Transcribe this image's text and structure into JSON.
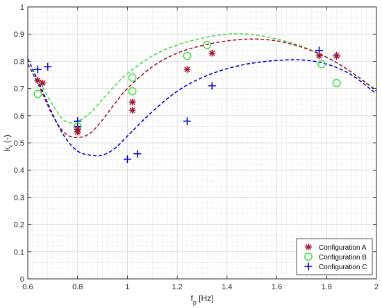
{
  "chart_data": {
    "type": "scatter",
    "xlabel": "f",
    "xlabel_sub": "p",
    "xlabel_unit": " [Hz]",
    "ylabel": "k",
    "ylabel_sub": "t",
    "ylabel_unit": " (-)",
    "xlim": [
      0.6,
      2.0
    ],
    "ylim": [
      0,
      1
    ],
    "x_ticks": [
      0.6,
      0.8,
      1.0,
      1.2,
      1.4,
      1.6,
      1.8,
      2.0
    ],
    "x_tick_labels": [
      "0.6",
      "0.8",
      "1",
      "1.2",
      "1.4",
      "1.6",
      "1.8",
      "2"
    ],
    "y_ticks": [
      0,
      0.1,
      0.2,
      0.3,
      0.4,
      0.5,
      0.6,
      0.7,
      0.8,
      0.9,
      1.0
    ],
    "y_tick_labels": [
      "0",
      "0.1",
      "0.2",
      "0.3",
      "0.4",
      "0.5",
      "0.6",
      "0.7",
      "0.8",
      "0.9",
      "1"
    ],
    "grid": true,
    "minor_grid": true,
    "legend_position": "bottom-right",
    "series": [
      {
        "name": "Configuration A",
        "marker": "asterisk",
        "color": "#A2142F",
        "points": [
          [
            0.64,
            0.73
          ],
          [
            0.66,
            0.72
          ],
          [
            0.8,
            0.55
          ],
          [
            0.8,
            0.54
          ],
          [
            1.02,
            0.62
          ],
          [
            1.02,
            0.65
          ],
          [
            1.24,
            0.77
          ],
          [
            1.34,
            0.83
          ],
          [
            1.77,
            0.82
          ],
          [
            1.84,
            0.82
          ]
        ]
      },
      {
        "name": "Configuration B",
        "marker": "circle",
        "color": "#49D94A",
        "points": [
          [
            0.64,
            0.68
          ],
          [
            0.8,
            0.56
          ],
          [
            1.02,
            0.74
          ],
          [
            1.02,
            0.69
          ],
          [
            1.24,
            0.82
          ],
          [
            1.32,
            0.86
          ],
          [
            1.78,
            0.79
          ],
          [
            1.84,
            0.72
          ]
        ]
      },
      {
        "name": "Configuration C",
        "marker": "plus",
        "color": "#0000CC",
        "points": [
          [
            0.64,
            0.77
          ],
          [
            0.68,
            0.78
          ],
          [
            0.8,
            0.58
          ],
          [
            0.8,
            0.56
          ],
          [
            1.0,
            0.44
          ],
          [
            1.04,
            0.46
          ],
          [
            1.24,
            0.58
          ],
          [
            1.34,
            0.71
          ],
          [
            1.77,
            0.84
          ],
          [
            1.84,
            0.82
          ]
        ]
      }
    ],
    "fit_curves": [
      {
        "color": "#49D94A",
        "points": [
          [
            0.6,
            0.79
          ],
          [
            0.65,
            0.72
          ],
          [
            0.7,
            0.64
          ],
          [
            0.75,
            0.58
          ],
          [
            0.8,
            0.58
          ],
          [
            0.85,
            0.61
          ],
          [
            0.9,
            0.66
          ],
          [
            0.95,
            0.71
          ],
          [
            1.0,
            0.755
          ],
          [
            1.1,
            0.82
          ],
          [
            1.2,
            0.86
          ],
          [
            1.3,
            0.885
          ],
          [
            1.4,
            0.9
          ],
          [
            1.5,
            0.898
          ],
          [
            1.6,
            0.882
          ],
          [
            1.7,
            0.855
          ],
          [
            1.8,
            0.815
          ],
          [
            1.9,
            0.76
          ],
          [
            2.0,
            0.695
          ]
        ]
      },
      {
        "color": "#A2142F",
        "points": [
          [
            0.6,
            0.79
          ],
          [
            0.65,
            0.7
          ],
          [
            0.7,
            0.6
          ],
          [
            0.75,
            0.535
          ],
          [
            0.8,
            0.52
          ],
          [
            0.85,
            0.535
          ],
          [
            0.9,
            0.585
          ],
          [
            0.95,
            0.645
          ],
          [
            1.0,
            0.7
          ],
          [
            1.1,
            0.78
          ],
          [
            1.2,
            0.83
          ],
          [
            1.3,
            0.858
          ],
          [
            1.4,
            0.875
          ],
          [
            1.5,
            0.882
          ],
          [
            1.6,
            0.875
          ],
          [
            1.7,
            0.852
          ],
          [
            1.8,
            0.815
          ],
          [
            1.9,
            0.76
          ],
          [
            2.0,
            0.69
          ]
        ]
      },
      {
        "color": "#0000CC",
        "points": [
          [
            0.6,
            0.81
          ],
          [
            0.65,
            0.71
          ],
          [
            0.7,
            0.605
          ],
          [
            0.75,
            0.52
          ],
          [
            0.8,
            0.47
          ],
          [
            0.85,
            0.455
          ],
          [
            0.9,
            0.455
          ],
          [
            0.95,
            0.48
          ],
          [
            1.0,
            0.525
          ],
          [
            1.1,
            0.615
          ],
          [
            1.2,
            0.69
          ],
          [
            1.3,
            0.74
          ],
          [
            1.4,
            0.773
          ],
          [
            1.5,
            0.793
          ],
          [
            1.6,
            0.803
          ],
          [
            1.7,
            0.805
          ],
          [
            1.8,
            0.79
          ],
          [
            1.9,
            0.75
          ],
          [
            2.0,
            0.68
          ]
        ]
      }
    ]
  }
}
